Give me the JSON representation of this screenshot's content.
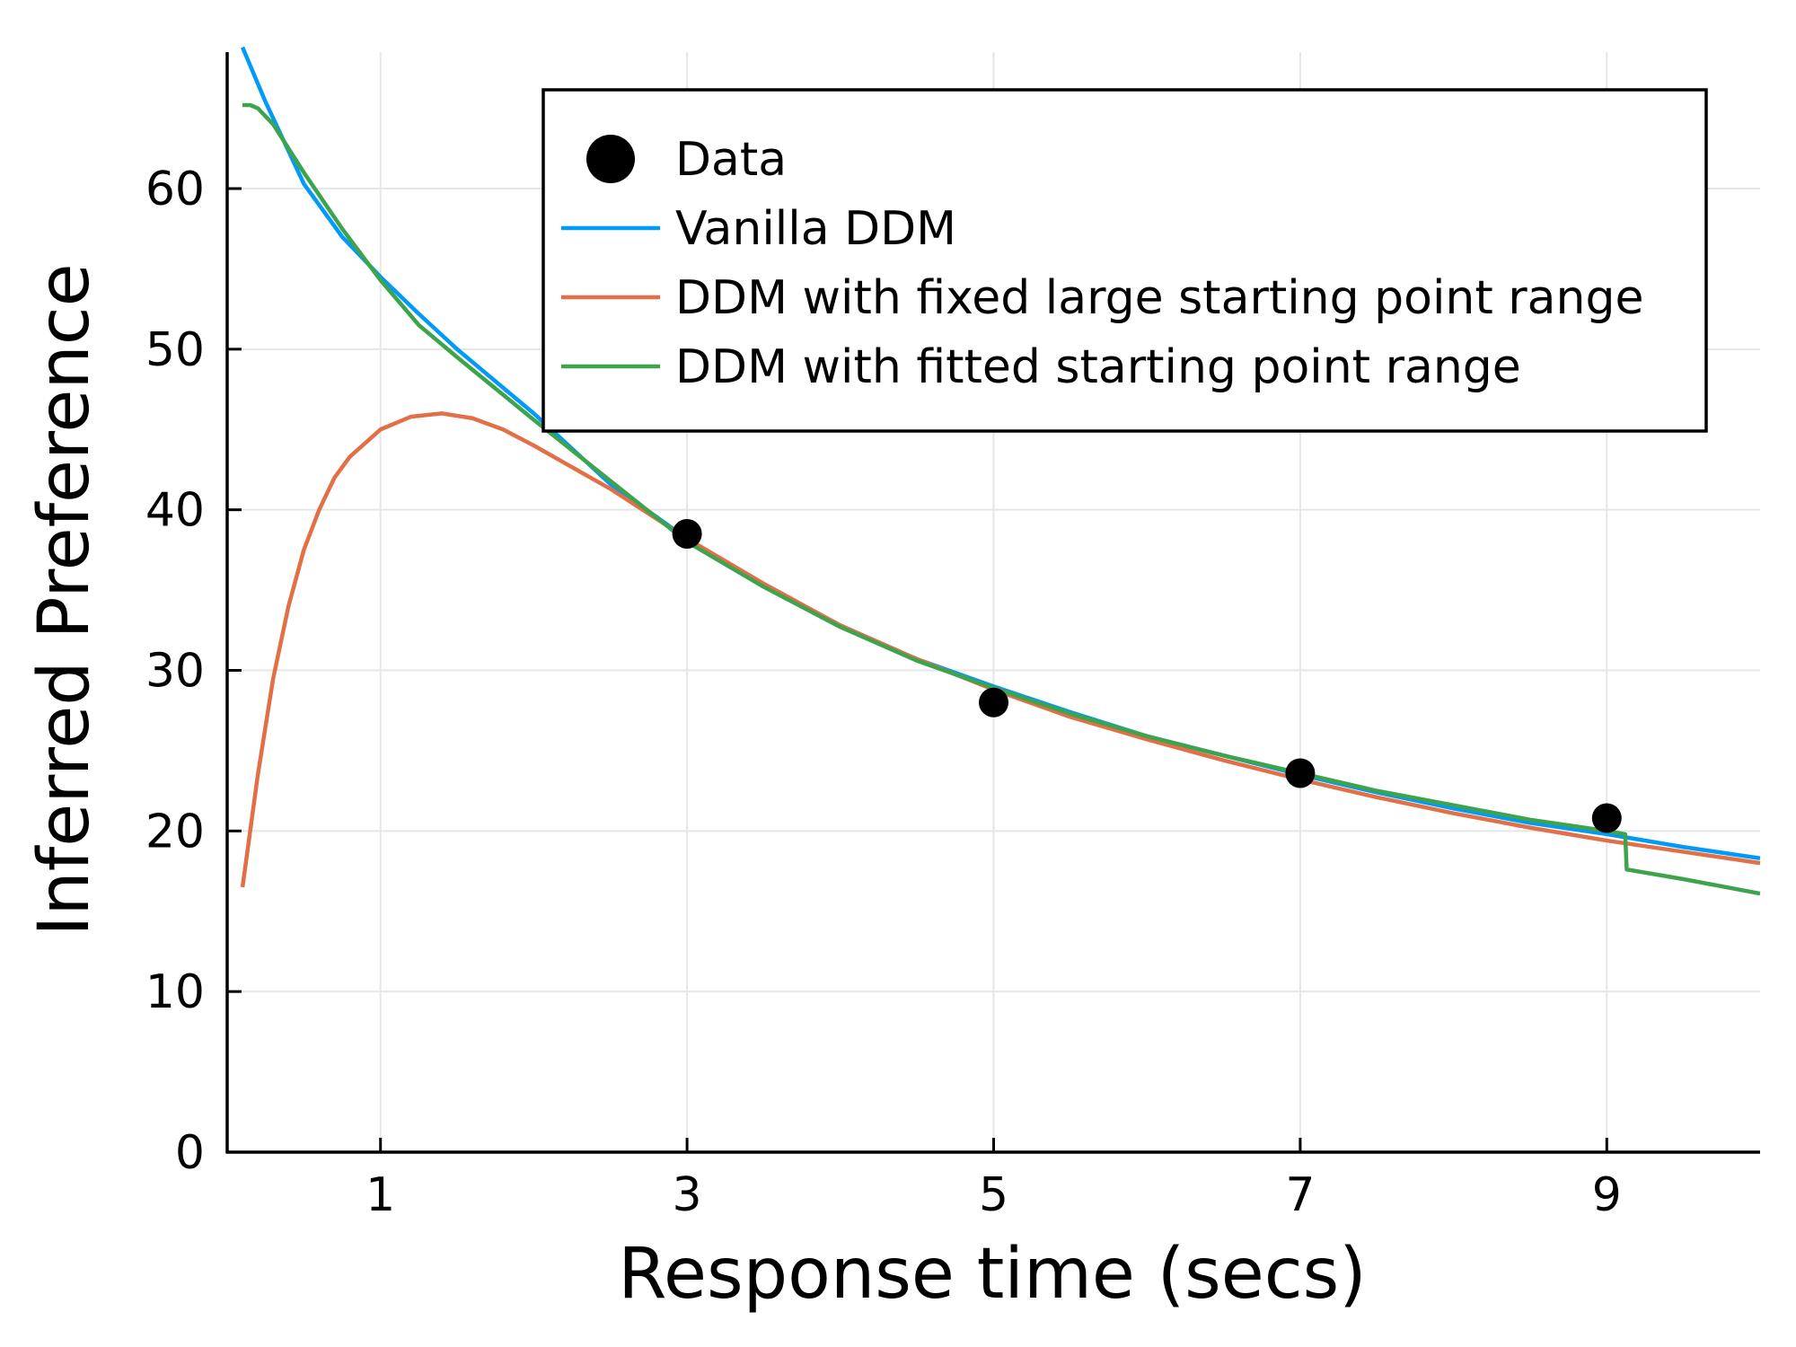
{
  "chart_data": {
    "type": "line",
    "title": "",
    "xlabel": "Response time (secs)",
    "ylabel": "Inferred Preference",
    "xlim": [
      0,
      10
    ],
    "ylim": [
      0,
      68.5
    ],
    "x_ticks": [
      1,
      3,
      5,
      7,
      9
    ],
    "y_ticks": [
      0,
      10,
      20,
      30,
      40,
      50,
      60
    ],
    "grid": true,
    "legend_position": "top-right",
    "legend": [
      {
        "label": "Data",
        "kind": "marker",
        "color": "#000000"
      },
      {
        "label": "Vanilla DDM",
        "kind": "line",
        "color": "#009AF9"
      },
      {
        "label": "DDM with fixed large starting point range",
        "kind": "line",
        "color": "#E26F46"
      },
      {
        "label": "DDM with fitted starting point range",
        "kind": "line",
        "color": "#3DA44D"
      }
    ],
    "scatter": {
      "name": "Data",
      "color": "#000000",
      "points": [
        [
          3,
          38.5
        ],
        [
          5,
          28.0
        ],
        [
          7,
          23.6
        ],
        [
          9,
          20.8
        ]
      ]
    },
    "series": [
      {
        "name": "Vanilla DDM",
        "color": "#009AF9",
        "x": [
          0.1,
          0.25,
          0.5,
          0.75,
          1.0,
          1.25,
          1.5,
          2.0,
          2.5,
          3.0,
          3.5,
          4.0,
          4.5,
          5.0,
          5.5,
          6.0,
          6.5,
          7.0,
          7.5,
          8.0,
          8.5,
          9.0,
          9.5,
          10.0
        ],
        "y": [
          68.8,
          65.4,
          60.3,
          57.0,
          54.5,
          52.2,
          50.0,
          46.0,
          41.6,
          38.2,
          35.3,
          32.8,
          30.7,
          29.0,
          27.4,
          25.9,
          24.7,
          23.5,
          22.4,
          21.4,
          20.5,
          19.8,
          19.0,
          18.3
        ]
      },
      {
        "name": "DDM with fixed large starting point range",
        "color": "#E26F46",
        "x": [
          0.1,
          0.2,
          0.3,
          0.4,
          0.5,
          0.6,
          0.7,
          0.8,
          1.0,
          1.2,
          1.4,
          1.6,
          1.8,
          2.0,
          2.5,
          3.0,
          3.5,
          4.0,
          4.5,
          5.0,
          5.5,
          6.0,
          6.5,
          7.0,
          7.5,
          8.0,
          8.5,
          9.0,
          9.5,
          10.0
        ],
        "y": [
          16.5,
          23.5,
          29.5,
          34.0,
          37.5,
          40.0,
          42.0,
          43.3,
          45.0,
          45.8,
          46.0,
          45.7,
          45.0,
          44.0,
          41.3,
          38.2,
          35.4,
          32.8,
          30.7,
          28.8,
          27.1,
          25.7,
          24.4,
          23.2,
          22.1,
          21.1,
          20.2,
          19.4,
          18.7,
          18.0
        ]
      },
      {
        "name": "DDM with fitted starting point range",
        "color": "#3DA44D",
        "x": [
          0.1,
          0.15,
          0.2,
          0.3,
          0.5,
          0.75,
          1.0,
          1.25,
          1.5,
          2.0,
          2.5,
          3.0,
          3.5,
          4.0,
          4.5,
          5.0,
          5.5,
          6.0,
          6.5,
          7.0,
          7.5,
          8.0,
          8.5,
          9.0,
          9.12,
          9.13,
          9.5,
          10.0
        ],
        "y": [
          65.2,
          65.2,
          65.0,
          64.0,
          61.0,
          57.5,
          54.3,
          51.5,
          49.5,
          45.6,
          41.8,
          38.0,
          35.2,
          32.7,
          30.6,
          28.9,
          27.3,
          25.9,
          24.7,
          23.6,
          22.5,
          21.6,
          20.7,
          20.0,
          19.8,
          17.6,
          17.0,
          16.1
        ]
      }
    ]
  }
}
